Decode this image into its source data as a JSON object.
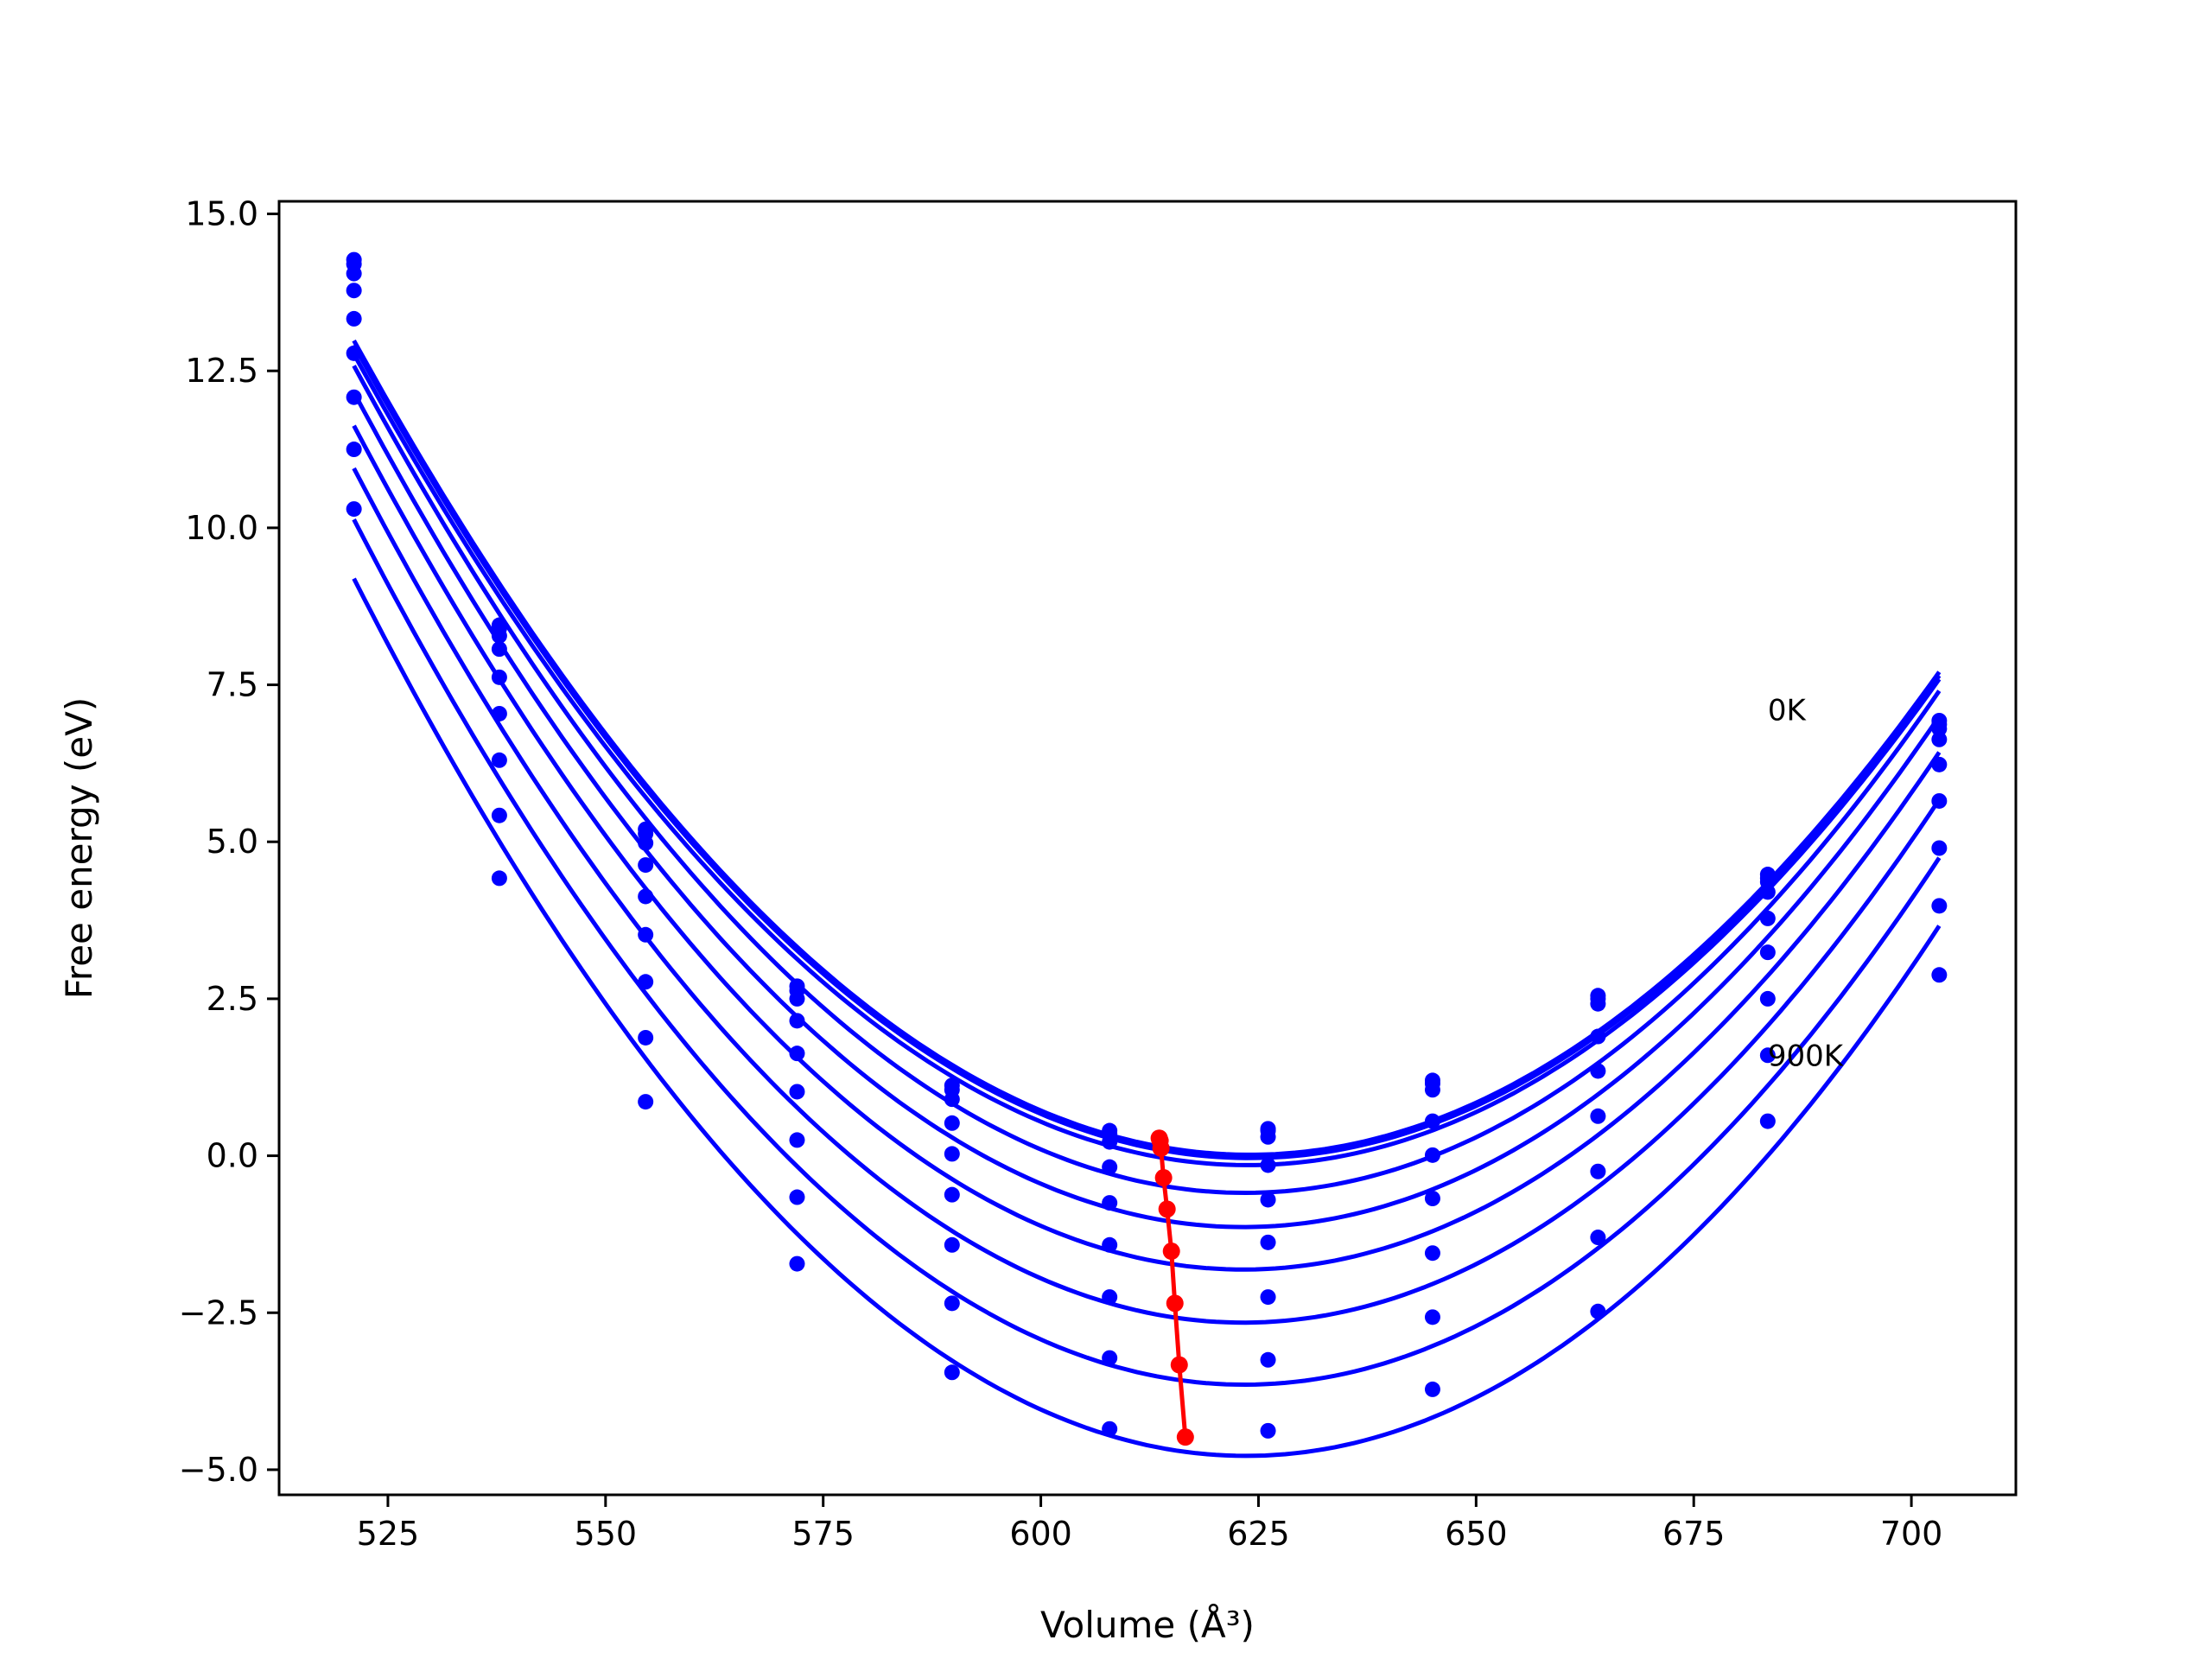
{
  "chart_data": {
    "type": "line",
    "title": "",
    "xlabel": "Volume (Å³)",
    "ylabel": "Free energy (eV)",
    "xlim": [
      512.5,
      712
    ],
    "ylim": [
      -5.4,
      15.2
    ],
    "xticks": [
      525,
      550,
      575,
      600,
      625,
      650,
      675,
      700
    ],
    "yticks": [
      -5.0,
      -2.5,
      0.0,
      2.5,
      5.0,
      7.5,
      10.0,
      12.5,
      15.0
    ],
    "ytick_labels": [
      "−5.0",
      "−2.5",
      "0.0",
      "2.5",
      "5.0",
      "7.5",
      "10.0",
      "12.5",
      "15.0"
    ],
    "grid": false,
    "annotations": [
      {
        "text": "0K",
        "x": 683.5,
        "y": 7.1
      },
      {
        "text": "900K",
        "x": 683.5,
        "y": 1.6
      }
    ],
    "colors": {
      "curves": "#0000ff",
      "minima": "#ff0000"
    },
    "sample_volumes": [
      521.1,
      537.8,
      554.6,
      572.0,
      589.8,
      607.9,
      626.1,
      645.0,
      664.0,
      683.5,
      703.2
    ],
    "series": [
      {
        "values": [
          14.27,
          8.45,
          5.2,
          2.7,
          1.12,
          0.4,
          0.43,
          1.2,
          2.55,
          4.48,
          6.93
        ],
        "minimum": {
          "x": 613.6,
          "y": 0.28
        }
      },
      {
        "values": [
          14.2,
          8.4,
          5.13,
          2.63,
          1.05,
          0.35,
          0.4,
          1.15,
          2.5,
          4.42,
          6.87
        ],
        "minimum": {
          "x": 613.7,
          "y": 0.24
        }
      },
      {
        "values": [
          14.05,
          8.28,
          4.98,
          2.5,
          0.9,
          0.22,
          0.3,
          1.05,
          2.42,
          4.36,
          6.8
        ],
        "minimum": {
          "x": 613.8,
          "y": 0.12
        }
      },
      {
        "values": [
          13.78,
          8.07,
          4.63,
          2.15,
          0.52,
          -0.18,
          -0.15,
          0.55,
          1.9,
          4.2,
          6.63
        ],
        "minimum": {
          "x": 614.1,
          "y": -0.35
        }
      },
      {
        "values": [
          13.33,
          7.62,
          4.13,
          1.63,
          0.03,
          -0.75,
          -0.7,
          0.01,
          1.35,
          3.78,
          6.23
        ],
        "minimum": {
          "x": 614.5,
          "y": -0.85
        }
      },
      {
        "values": [
          12.78,
          7.04,
          3.52,
          1.02,
          -0.62,
          -1.42,
          -1.38,
          -0.68,
          0.63,
          3.24,
          5.65
        ],
        "minimum": {
          "x": 615.0,
          "y": -1.52
        }
      },
      {
        "values": [
          12.08,
          6.3,
          2.77,
          0.25,
          -1.42,
          -2.25,
          -2.25,
          -1.55,
          -0.25,
          2.5,
          4.9
        ],
        "minimum": {
          "x": 615.4,
          "y": -2.35
        }
      },
      {
        "values": [
          11.25,
          5.42,
          1.88,
          -0.66,
          -2.35,
          -3.22,
          -3.25,
          -2.57,
          -1.3,
          1.6,
          3.98
        ],
        "minimum": {
          "x": 615.9,
          "y": -3.33
        }
      },
      {
        "values": [
          10.3,
          4.42,
          0.86,
          -1.72,
          -3.45,
          -4.35,
          -4.38,
          -3.72,
          -2.48,
          0.55,
          2.88
        ],
        "minimum": {
          "x": 616.6,
          "y": -4.48
        }
      }
    ]
  }
}
